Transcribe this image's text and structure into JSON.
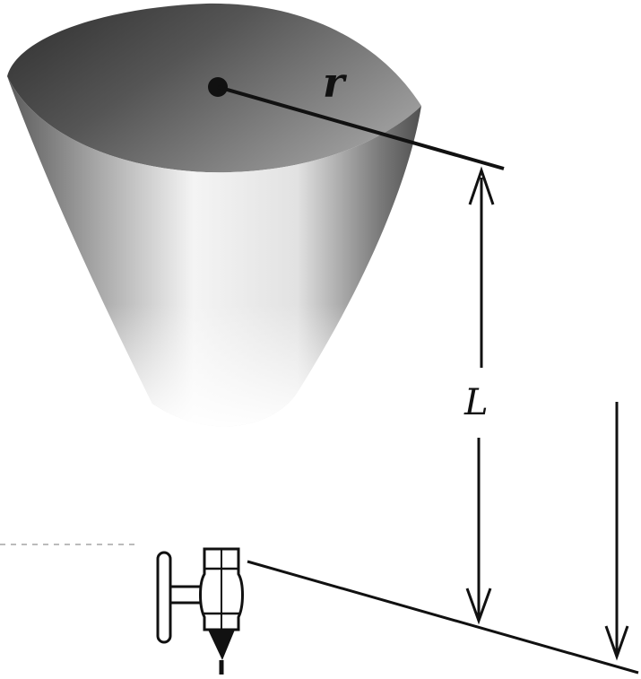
{
  "labels": {
    "radius": "r",
    "height": "L"
  },
  "colors": {
    "ink": "#111111",
    "cone_dark": "#3a3a3a",
    "cone_mid": "#8a8a8a",
    "cone_light": "#f2f2f2"
  }
}
